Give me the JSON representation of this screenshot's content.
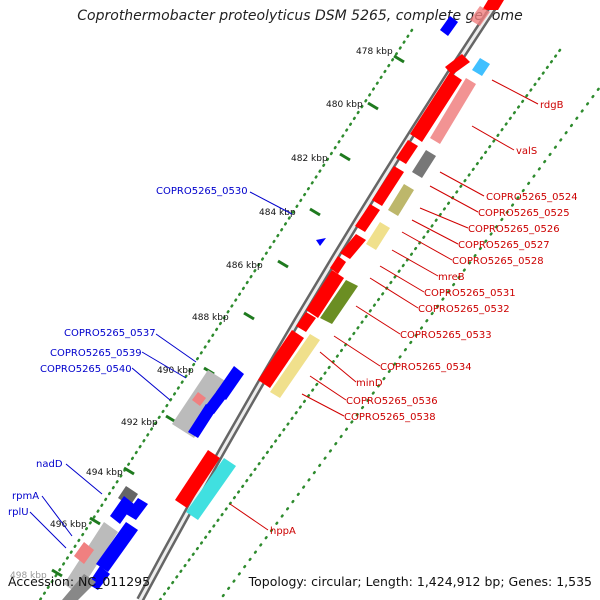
{
  "title": "Coprothermobacter proteolyticus DSM 5265, complete genome",
  "footer": {
    "accession": "Accession: NC_011295",
    "summary": "Topology: circular; Length: 1,424,912 bp; Genes: 1,535"
  },
  "colors": {
    "forward_cds": "#ff0000",
    "reverse_cds": "#0000ff",
    "other_gene": "#999999",
    "trna": "#66ffff",
    "cog_light": "#f0e08c",
    "cog_olive": "#6b8e23",
    "cog_khaki": "#bdb76b",
    "cog_pink": "#f08080",
    "cog_cyan": "#66ffff",
    "backbone": "#808080",
    "tick_green": "#228b22",
    "label_red": "#cc0000",
    "label_blue": "#0000cc"
  },
  "scale_ticks": [
    "478 kbp",
    "480 kbp",
    "482 kbp",
    "484 kbp",
    "486 kbp",
    "488 kbp",
    "490 kbp",
    "492 kbp",
    "494 kbp",
    "496 kbp",
    "498 kbp"
  ],
  "labels_right": [
    "rdgB",
    "valS",
    "COPRO5265_0524",
    "COPRO5265_0525",
    "COPRO5265_0526",
    "COPRO5265_0527",
    "COPRO5265_0528",
    "mreB",
    "COPRO5265_0531",
    "COPRO5265_0532",
    "COPRO5265_0533",
    "COPRO5265_0534",
    "minD",
    "COPRO5265_0536",
    "COPRO5265_0538",
    "hppA"
  ],
  "labels_left": [
    "COPRO5265_0530",
    "COPRO5265_0537",
    "COPRO5265_0539",
    "COPRO5265_0540",
    "nadD",
    "rpmA",
    "rplU"
  ]
}
